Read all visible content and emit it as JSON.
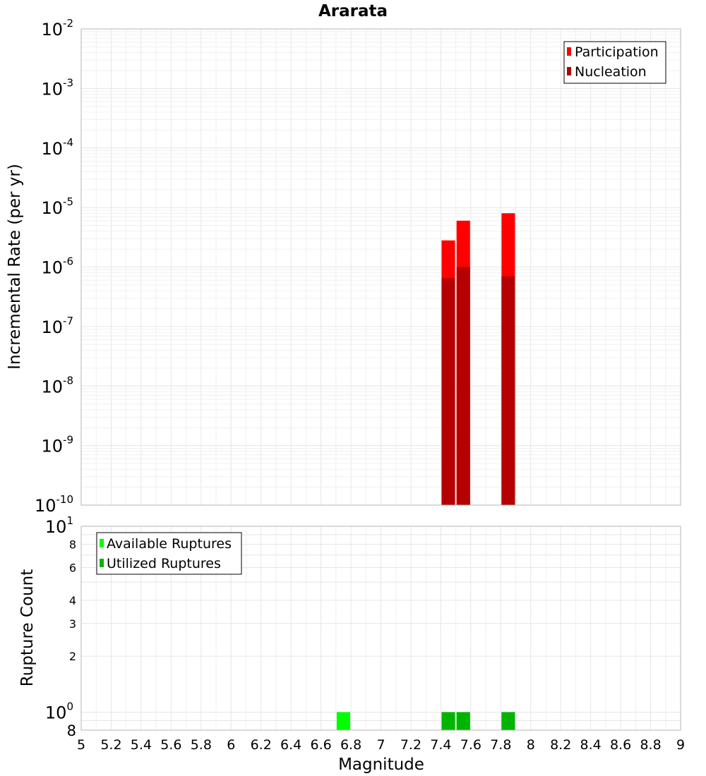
{
  "chart_data": [
    {
      "type": "bar",
      "title": "Ararata",
      "ylabel": "Incremental Rate (per yr)",
      "yscale": "log",
      "ylim": [
        1e-10,
        0.01
      ],
      "xlim": [
        5,
        9
      ],
      "y_ticks": [
        {
          "base": "10",
          "exp": "-2"
        },
        {
          "base": "10",
          "exp": "-3"
        },
        {
          "base": "10",
          "exp": "-4"
        },
        {
          "base": "10",
          "exp": "-5"
        },
        {
          "base": "10",
          "exp": "-6"
        },
        {
          "base": "10",
          "exp": "-7"
        },
        {
          "base": "10",
          "exp": "-8"
        },
        {
          "base": "10",
          "exp": "-9"
        },
        {
          "base": "10",
          "exp": "-10"
        }
      ],
      "legend_position": "top-right",
      "series": [
        {
          "name": "Participation",
          "color": "#ff0000",
          "x": [
            7.45,
            7.55,
            7.85
          ],
          "values": [
            2.8e-06,
            6e-06,
            8e-06
          ]
        },
        {
          "name": "Nucleation",
          "color": "#b40000",
          "x": [
            7.45,
            7.55,
            7.85
          ],
          "values": [
            6.5e-07,
            1e-06,
            7e-07
          ]
        }
      ]
    },
    {
      "type": "bar",
      "xlabel": "Magnitude",
      "ylabel": "Rupture Count",
      "yscale": "log",
      "ylim": [
        0.8,
        10
      ],
      "xlim": [
        5,
        9
      ],
      "x_ticks": [
        "5",
        "5.2",
        "5.4",
        "5.6",
        "5.8",
        "6",
        "6.2",
        "6.4",
        "6.6",
        "6.8",
        "7",
        "7.2",
        "7.4",
        "7.6",
        "7.8",
        "8",
        "8.2",
        "8.4",
        "8.6",
        "8.8",
        "9"
      ],
      "y_ticks_small": [
        "8",
        "6",
        "4",
        "3",
        "2"
      ],
      "y_ticks_big": [
        {
          "base": "10",
          "exp": "1"
        },
        {
          "base": "10",
          "exp": "0"
        }
      ],
      "y_tick_bottom": "8",
      "legend_position": "top-left",
      "series": [
        {
          "name": "Available Ruptures",
          "color": "#00ff00",
          "x": [
            6.75,
            7.45,
            7.55,
            7.85
          ],
          "values": [
            1,
            1,
            1,
            1
          ]
        },
        {
          "name": "Utilized Ruptures",
          "color": "#00b400",
          "x": [
            7.45,
            7.55,
            7.85
          ],
          "values": [
            1,
            1,
            1
          ]
        }
      ]
    }
  ]
}
